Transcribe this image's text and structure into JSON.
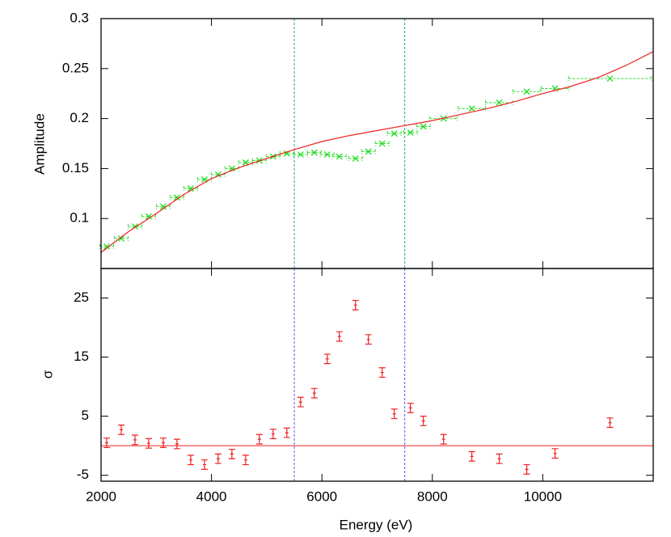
{
  "chart_data": [
    {
      "type": "errorbar",
      "ylabel": "Amplitude",
      "xlim": [
        2000,
        12000
      ],
      "ylim": [
        0.05,
        0.3
      ],
      "yticks": [
        0.1,
        0.15,
        0.2,
        0.25,
        0.3
      ],
      "markers": [
        5500,
        7500
      ],
      "marker_color": "#2a9d9d",
      "series": [
        {
          "color": "#22dd22",
          "x": [
            2102,
            2366,
            2615,
            2863,
            3127,
            3375,
            3624,
            3873,
            4121,
            4370,
            4619,
            4868,
            5116,
            5365,
            5613,
            5862,
            6096,
            6316,
            6608,
            6842,
            7091,
            7310,
            7603,
            7837,
            8203,
            8715,
            9212,
            9710,
            10222,
            11217
          ],
          "x_errors": [
            125,
            125,
            125,
            125,
            125,
            125,
            125,
            125,
            125,
            125,
            125,
            125,
            125,
            125,
            125,
            125,
            125,
            125,
            125,
            125,
            125,
            125,
            125,
            125,
            250,
            250,
            250,
            250,
            250,
            750
          ],
          "values": [
            0.072,
            0.08,
            0.092,
            0.102,
            0.112,
            0.121,
            0.13,
            0.139,
            0.144,
            0.15,
            0.156,
            0.158,
            0.162,
            0.165,
            0.164,
            0.166,
            0.164,
            0.162,
            0.16,
            0.167,
            0.175,
            0.185,
            0.186,
            0.192,
            0.2,
            0.21,
            0.216,
            0.227,
            0.23,
            0.24
          ]
        },
        {
          "color": "#ee2222",
          "style": "line",
          "x": [
            2000,
            2500,
            3000,
            3500,
            4000,
            4500,
            5000,
            5500,
            6000,
            6500,
            7000,
            7500,
            8000,
            8500,
            9000,
            9500,
            10000,
            10500,
            11000,
            11500,
            12000
          ],
          "values": [
            0.066,
            0.087,
            0.105,
            0.124,
            0.14,
            0.151,
            0.16,
            0.169,
            0.177,
            0.183,
            0.188,
            0.193,
            0.198,
            0.204,
            0.21,
            0.217,
            0.225,
            0.232,
            0.241,
            0.253,
            0.267
          ]
        }
      ]
    },
    {
      "type": "errorbar",
      "ylabel": "σ",
      "xlabel": "Energy (eV)",
      "xlim": [
        2000,
        12000
      ],
      "ylim": [
        -6,
        30
      ],
      "xticks": [
        2000,
        4000,
        6000,
        8000,
        10000
      ],
      "yticks": [
        -5,
        5,
        15,
        25
      ],
      "markers": [
        5500,
        7500
      ],
      "marker_color": "#5555ee",
      "reference_line": 0,
      "reference_color": "#ee2222",
      "series": [
        {
          "color": "#ee2222",
          "x": [
            2102,
            2366,
            2615,
            2863,
            3127,
            3375,
            3624,
            3873,
            4121,
            4370,
            4619,
            4868,
            5116,
            5365,
            5613,
            5862,
            6096,
            6316,
            6608,
            6842,
            7091,
            7310,
            7603,
            7837,
            8203,
            8715,
            9212,
            9710,
            10222,
            11217
          ],
          "values": [
            0.5,
            2.7,
            1.0,
            0.4,
            0.5,
            0.3,
            -2.4,
            -3.2,
            -2.2,
            -1.4,
            -2.4,
            1.1,
            2.0,
            2.2,
            7.4,
            8.9,
            14.7,
            18.5,
            23.8,
            18.0,
            12.4,
            5.4,
            6.4,
            4.2,
            1.1,
            -1.8,
            -2.2,
            -4.0,
            -1.3,
            3.9
          ],
          "errors": [
            0.8,
            0.8,
            0.8,
            0.8,
            0.8,
            0.8,
            0.8,
            0.8,
            0.8,
            0.8,
            0.8,
            0.8,
            0.8,
            0.8,
            0.8,
            0.8,
            0.8,
            0.8,
            0.8,
            0.8,
            0.8,
            0.8,
            0.8,
            0.8,
            0.8,
            0.8,
            0.8,
            0.8,
            0.8,
            0.8
          ]
        }
      ]
    }
  ]
}
